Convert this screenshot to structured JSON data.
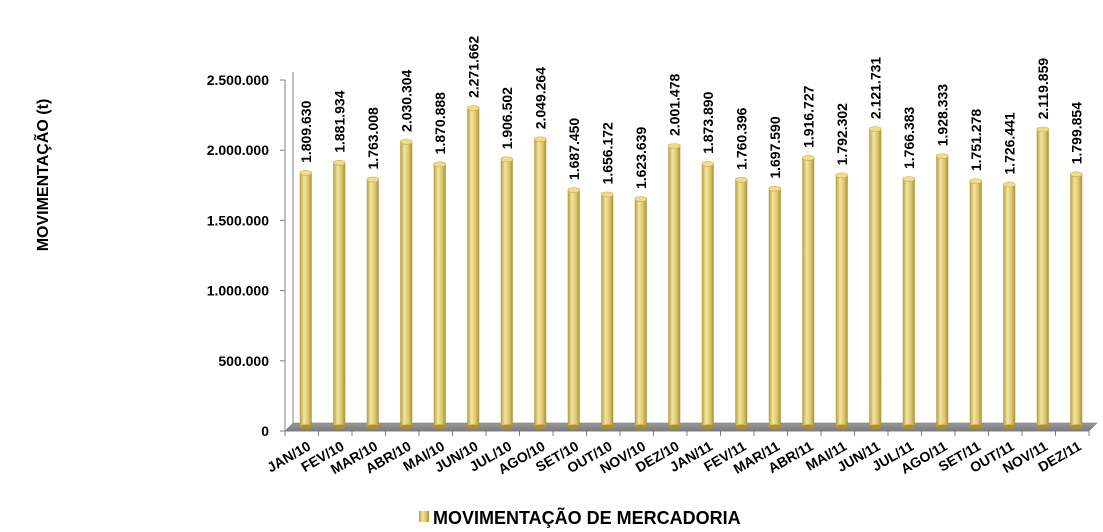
{
  "chart_data": {
    "type": "bar",
    "ylabel": "MOVIMENTAÇÃO (t)",
    "xlabel": "",
    "ylim": [
      0,
      2500000
    ],
    "yticks": [
      0,
      500000,
      1000000,
      1500000,
      2000000,
      2500000
    ],
    "ytick_labels": [
      "0",
      "500.000",
      "1.000.000",
      "1.500.000",
      "2.000.000",
      "2.500.000"
    ],
    "categories": [
      "JAN/10",
      "FEV/10",
      "MAR/10",
      "ABR/10",
      "MAI/10",
      "JUN/10",
      "JUL/10",
      "AGO/10",
      "SET/10",
      "OUT/10",
      "NOV/10",
      "DEZ/10",
      "JAN/11",
      "FEV/11",
      "MAR/11",
      "ABR/11",
      "MAI/11",
      "JUN/11",
      "JUL/11",
      "AGO/11",
      "SET/11",
      "OUT/11",
      "NOV/11",
      "DEZ/11"
    ],
    "series": [
      {
        "name": "MOVIMENTAÇÃO DE MERCADORIA",
        "color": "#e0cc74",
        "values": [
          1809630,
          1881934,
          1763008,
          2030304,
          1870888,
          2271662,
          1906502,
          2049264,
          1687450,
          1656172,
          1623639,
          2001478,
          1873890,
          1760396,
          1697590,
          1916727,
          1792302,
          2121731,
          1766383,
          1928333,
          1751278,
          1726441,
          2119859,
          1799854
        ],
        "labels": [
          "1.809.630",
          "1.881.934",
          "1.763.008",
          "2.030.304",
          "1.870.888",
          "2.271.662",
          "1.906.502",
          "2.049.264",
          "1.687.450",
          "1.656.172",
          "1.623.639",
          "2.001.478",
          "1.873.890",
          "1.760.396",
          "1.697.590",
          "1.916.727",
          "1.792.302",
          "2.121.731",
          "1.766.383",
          "1.928.333",
          "1.751.278",
          "1.726.441",
          "2.119.859",
          "1.799.854"
        ]
      }
    ],
    "legend": {
      "position": "bottom-center"
    },
    "floor_color": "#8c8c8c",
    "grid": false
  }
}
